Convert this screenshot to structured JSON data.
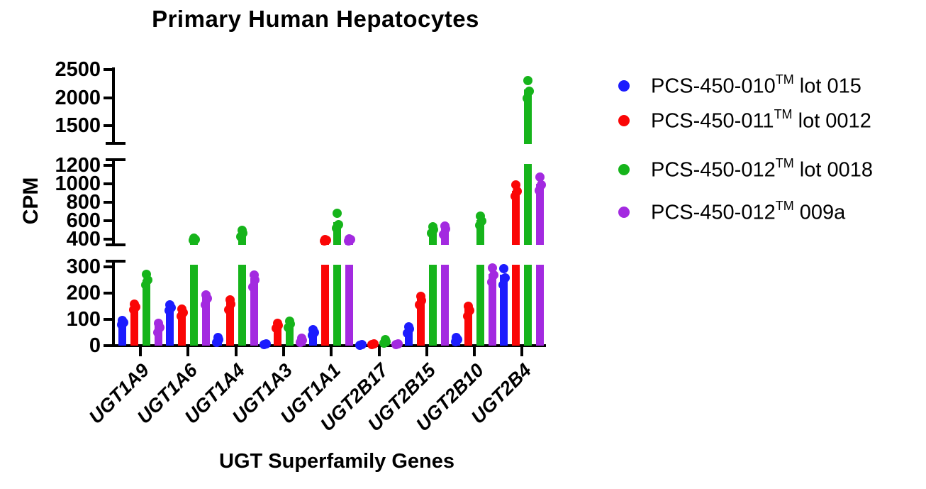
{
  "chart_data": {
    "type": "bar",
    "subtype": "grouped-bars-with-replicate-points-and-broken-y-axis",
    "title": "Primary Human Hepatocytes",
    "xlabel": "UGT Superfamily Genes",
    "ylabel": "CPM",
    "grid": false,
    "legend_position": "right",
    "categories": [
      "UGT1A9",
      "UGT1A6",
      "UGT1A4",
      "UGT1A3",
      "UGT1A1",
      "UGT2B17",
      "UGT2B15",
      "UGT2B10",
      "UGT2B4"
    ],
    "axis_segments": [
      {
        "range": [
          0,
          300
        ],
        "ticks": [
          0,
          100,
          200,
          300
        ]
      },
      {
        "range": [
          400,
          1200
        ],
        "ticks": [
          400,
          600,
          800,
          1000,
          1200
        ]
      },
      {
        "range": [
          1500,
          2500
        ],
        "ticks": [
          1500,
          2000,
          2500
        ]
      }
    ],
    "series": [
      {
        "name": "PCS-450-010™ lot 015",
        "label_prefix": "PCS-450-010",
        "label_sup": "TM",
        "label_suffix": " lot 015",
        "color": "#1c1cfe",
        "bar_means": [
          90,
          145,
          25,
          5,
          52,
          2,
          65,
          25,
          270
        ],
        "points": [
          [
            80,
            88,
            95
          ],
          [
            133,
            144,
            155
          ],
          [
            13,
            22,
            31
          ],
          [
            3,
            7
          ],
          [
            40,
            50,
            60
          ],
          [
            2,
            4
          ],
          [
            48,
            62,
            72
          ],
          [
            14,
            22,
            30
          ],
          [
            230,
            258,
            292
          ]
        ]
      },
      {
        "name": "PCS-450-011™ lot 0012",
        "label_prefix": "PCS-450-011",
        "label_sup": "TM",
        "label_suffix": " lot 0012",
        "color": "#fa0606",
        "bar_means": [
          150,
          127,
          165,
          78,
          390,
          6,
          180,
          140,
          925
        ],
        "points": [
          [
            137,
            148,
            158
          ],
          [
            113,
            126,
            140
          ],
          [
            136,
            158,
            174
          ],
          [
            66,
            76,
            86
          ],
          [
            382,
            390,
            398
          ],
          [
            4,
            8
          ],
          [
            156,
            172,
            188
          ],
          [
            112,
            134,
            150
          ],
          [
            868,
            918,
            985
          ]
        ]
      },
      {
        "name": "PCS-450-012™ lot 0018",
        "label_prefix": "PCS-450-012",
        "label_sup": "TM",
        "label_suffix": " lot 0018",
        "color": "#16b41b",
        "bar_means": [
          250,
          400,
          465,
          85,
          585,
          18,
          505,
          605,
          2140
        ],
        "points": [
          [
            230,
            250,
            272
          ],
          [
            388,
            400,
            412
          ],
          [
            430,
            466,
            500
          ],
          [
            70,
            82,
            92
          ],
          [
            518,
            556,
            680
          ],
          [
            10,
            16,
            24
          ],
          [
            462,
            505,
            535
          ],
          [
            552,
            600,
            648
          ],
          [
            1990,
            2120,
            2310
          ]
        ]
      },
      {
        "name": "PCS-450-012™ 009a",
        "label_prefix": "PCS-450-012",
        "label_sup": "TM",
        "label_suffix": " 009a",
        "color": "#a32ae0",
        "bar_means": [
          75,
          185,
          255,
          22,
          395,
          5,
          505,
          272,
          1000
        ],
        "points": [
          [
            50,
            68,
            85
          ],
          [
            155,
            178,
            192
          ],
          [
            222,
            250,
            267
          ],
          [
            12,
            20,
            28
          ],
          [
            384,
            394,
            406
          ],
          [
            3,
            7
          ],
          [
            452,
            508,
            540
          ],
          [
            242,
            268,
            295
          ],
          [
            928,
            990,
            1070
          ]
        ]
      }
    ]
  }
}
